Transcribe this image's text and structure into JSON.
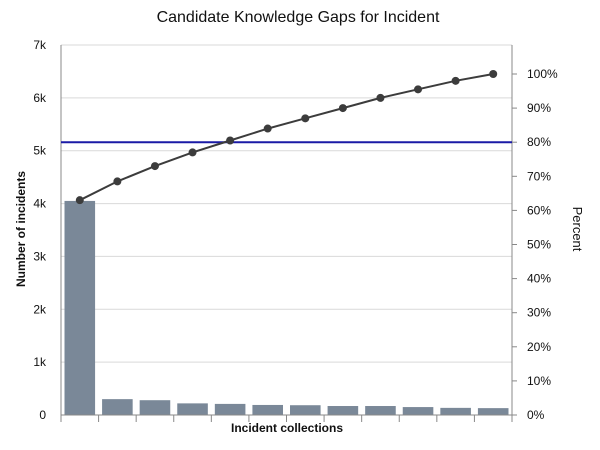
{
  "chart_data": {
    "type": "bar",
    "title": "Candidate Knowledge Gaps for Incident",
    "xlabel": "Incident collections",
    "ylabel": "Number of incidents",
    "y2label": "Percent",
    "ylim": [
      0,
      7000
    ],
    "y2lim": [
      0,
      1.1
    ],
    "y_ticks": [
      "0",
      "1k",
      "2k",
      "3k",
      "4k",
      "5k",
      "6k",
      "7k"
    ],
    "y2_ticks": [
      "0%",
      "10%",
      "20%",
      "30%",
      "40%",
      "50%",
      "60%",
      "70%",
      "80%",
      "90%",
      "100%"
    ],
    "categories": [
      "",
      "",
      "",
      "",
      "",
      "",
      "",
      "",
      "",
      "",
      "",
      ""
    ],
    "series": [
      {
        "type": "bar",
        "axis": "left",
        "values": [
          4050,
          300,
          280,
          220,
          210,
          190,
          185,
          170,
          170,
          150,
          135,
          130
        ]
      },
      {
        "type": "line",
        "axis": "right",
        "values": [
          0.63,
          0.685,
          0.73,
          0.77,
          0.805,
          0.84,
          0.87,
          0.9,
          0.93,
          0.955,
          0.98,
          1.0
        ]
      }
    ],
    "threshold": {
      "axis": "right",
      "value": 0.8,
      "color": "#1a1aa6"
    },
    "grid": true,
    "colors": {
      "bar": "#7a8898",
      "line": "#3c3c3c",
      "marker": "#3c3c3c"
    }
  }
}
